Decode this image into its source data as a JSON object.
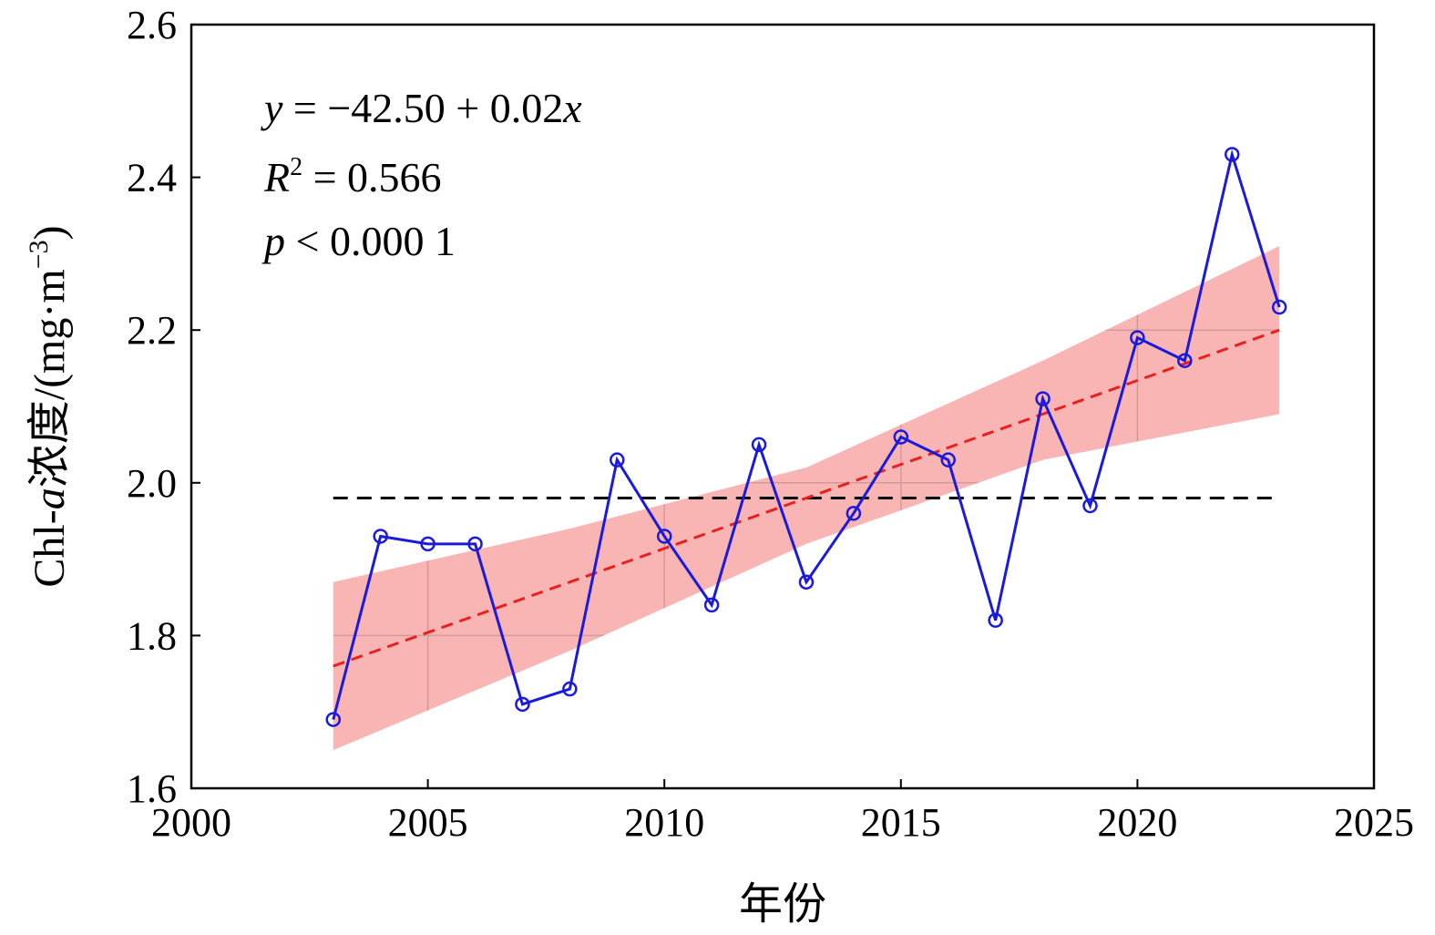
{
  "chart_data": {
    "type": "line",
    "xlabel": "年份",
    "ylabel": {
      "prefix": "Chl-",
      "italic": "a",
      "middle": "浓度/(mg·m",
      "superscript": "−3",
      "suffix": ")"
    },
    "xlim": [
      2000,
      2025
    ],
    "ylim": [
      1.6,
      2.6
    ],
    "xticks": [
      2000,
      2005,
      2010,
      2015,
      2020,
      2025
    ],
    "yticks": [
      1.6,
      1.8,
      2.0,
      2.2,
      2.4,
      2.6
    ],
    "xtick_labels": [
      "2000",
      "2005",
      "2010",
      "2015",
      "2020",
      "2025"
    ],
    "ytick_labels": [
      "1.6",
      "1.8",
      "2.0",
      "2.2",
      "2.4",
      "2.6"
    ],
    "grid": false,
    "series": [
      {
        "x": [
          2003,
          2004,
          2005,
          2006,
          2007,
          2008,
          2009,
          2010,
          2011,
          2012,
          2013,
          2014,
          2015,
          2016,
          2017,
          2018,
          2019,
          2020,
          2021,
          2022,
          2023
        ],
        "values": [
          1.69,
          1.93,
          1.92,
          1.92,
          1.71,
          1.73,
          2.03,
          1.93,
          1.84,
          2.05,
          1.87,
          1.96,
          2.06,
          2.03,
          1.82,
          2.11,
          1.97,
          2.19,
          2.16,
          2.43,
          2.23
        ],
        "color": "#1a1adc",
        "marker": "circle"
      }
    ],
    "regression": {
      "x_range": [
        2003,
        2023
      ],
      "y_start": 1.76,
      "y_end": 2.2,
      "color": "#e8211f",
      "style": "dashed"
    },
    "confidence_band": {
      "x": [
        2003,
        2008,
        2013,
        2018,
        2023
      ],
      "lower": [
        1.65,
        1.78,
        1.92,
        2.03,
        2.09
      ],
      "upper": [
        1.87,
        1.94,
        2.02,
        2.16,
        2.31
      ],
      "color": "#f8a7a7"
    },
    "mean_line": {
      "y": 1.98,
      "x_range": [
        2003,
        2023
      ],
      "color": "#000000",
      "style": "dashed"
    },
    "annotations": {
      "equation": {
        "y_var": "y",
        "text": " = −42.50 + 0.02",
        "x_var": "x"
      },
      "r2": {
        "var": "R",
        "sup": "2",
        "text": " = 0.566"
      },
      "p": {
        "var": "p",
        "text": " < 0.000 1"
      }
    }
  }
}
